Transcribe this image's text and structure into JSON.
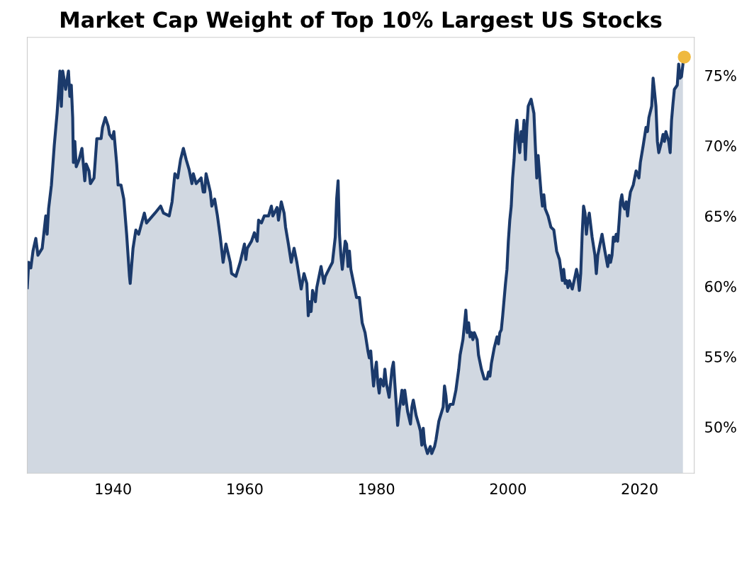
{
  "chart_data": {
    "type": "area",
    "title": "Market Cap Weight of Top 10% Largest US Stocks",
    "xlim": [
      1926.95,
      2028.3
    ],
    "ylim": [
      46.7,
      77.7
    ],
    "xticks": [
      1940,
      1960,
      1980,
      2000,
      2020
    ],
    "yticks": [
      {
        "value": 50,
        "label": "50%"
      },
      {
        "value": 55,
        "label": "55%"
      },
      {
        "value": 60,
        "label": "60%"
      },
      {
        "value": 65,
        "label": "65%"
      },
      {
        "value": 70,
        "label": "70%"
      },
      {
        "value": 75,
        "label": "75%"
      }
    ],
    "grid": false,
    "series": [
      {
        "color": "#1b3a6b",
        "marker": "none",
        "x": [
          1926.95,
          1927.17,
          1927.49,
          1927.82,
          1928.25,
          1928.57,
          1929.22,
          1929.76,
          1929.97,
          1930.19,
          1930.62,
          1931.05,
          1931.48,
          1931.7,
          1931.91,
          1932.13,
          1932.34,
          1932.78,
          1933.21,
          1933.42,
          1933.64,
          1933.85,
          1933.96,
          1934.18,
          1934.39,
          1934.82,
          1935.26,
          1935.69,
          1935.9,
          1936.33,
          1936.55,
          1937.09,
          1937.52,
          1938.17,
          1938.38,
          1938.81,
          1939.24,
          1939.46,
          1939.89,
          1940.11,
          1940.54,
          1940.75,
          1941.19,
          1941.62,
          1942.05,
          1942.48,
          1942.59,
          1943.02,
          1943.45,
          1943.88,
          1944.74,
          1945.07,
          1946.36,
          1947.22,
          1947.65,
          1948.52,
          1948.95,
          1949.38,
          1949.81,
          1950.24,
          1950.67,
          1951.1,
          1951.54,
          1951.97,
          1952.18,
          1952.61,
          1953.37,
          1953.69,
          1953.91,
          1954.12,
          1954.77,
          1954.99,
          1955.42,
          1955.85,
          1956.28,
          1956.71,
          1957.14,
          1957.79,
          1958.0,
          1958.65,
          1959.3,
          1959.95,
          1960.16,
          1960.38,
          1961.02,
          1961.46,
          1961.89,
          1962.1,
          1962.53,
          1962.96,
          1963.61,
          1964.04,
          1964.26,
          1964.91,
          1965.12,
          1965.55,
          1965.98,
          1966.2,
          1966.63,
          1967.06,
          1967.49,
          1967.92,
          1968.36,
          1968.57,
          1969.0,
          1969.43,
          1969.65,
          1969.87,
          1970.08,
          1970.3,
          1970.73,
          1970.94,
          1971.37,
          1971.59,
          1972.02,
          1972.24,
          1972.88,
          1973.32,
          1973.75,
          1973.96,
          1974.18,
          1974.39,
          1974.61,
          1974.82,
          1975.04,
          1975.26,
          1975.47,
          1975.69,
          1975.9,
          1976.12,
          1976.55,
          1976.98,
          1977.41,
          1977.84,
          1978.28,
          1978.71,
          1978.92,
          1979.14,
          1979.35,
          1979.57,
          1979.78,
          1980.0,
          1980.22,
          1980.43,
          1980.65,
          1981.08,
          1981.29,
          1981.51,
          1981.94,
          1982.37,
          1982.59,
          1982.8,
          1983.02,
          1983.23,
          1983.45,
          1983.88,
          1984.1,
          1984.31,
          1984.74,
          1985.18,
          1985.39,
          1985.61,
          1986.04,
          1986.47,
          1986.69,
          1986.9,
          1987.12,
          1987.33,
          1987.76,
          1988.19,
          1988.41,
          1988.84,
          1989.06,
          1989.49,
          1990.14,
          1990.35,
          1990.57,
          1990.78,
          1991.21,
          1991.64,
          1992.08,
          1992.51,
          1992.72,
          1993.15,
          1993.37,
          1993.59,
          1993.8,
          1994.02,
          1994.23,
          1994.45,
          1994.66,
          1994.88,
          1995.31,
          1995.52,
          1995.96,
          1996.39,
          1996.82,
          1997.04,
          1997.25,
          1997.47,
          1997.9,
          1998.33,
          1998.54,
          1998.76,
          1998.98,
          1999.19,
          1999.62,
          1999.84,
          2000.05,
          2000.27,
          2000.49,
          2000.7,
          2000.92,
          2001.13,
          2001.35,
          2001.56,
          2001.78,
          2002.0,
          2002.21,
          2002.43,
          2002.64,
          2002.86,
          2003.07,
          2003.51,
          2003.94,
          2004.15,
          2004.37,
          2004.58,
          2005.01,
          2005.23,
          2005.45,
          2005.66,
          2006.09,
          2006.52,
          2006.96,
          2007.39,
          2007.82,
          2008.25,
          2008.46,
          2008.68,
          2008.9,
          2009.11,
          2009.33,
          2009.76,
          2010.19,
          2010.41,
          2010.62,
          2010.84,
          2011.05,
          2011.27,
          2011.48,
          2011.7,
          2011.91,
          2012.13,
          2012.35,
          2012.78,
          2013.21,
          2013.42,
          2013.64,
          2014.07,
          2014.29,
          2014.72,
          2015.15,
          2015.37,
          2015.58,
          2015.8,
          2016.01,
          2016.23,
          2016.44,
          2016.66,
          2016.87,
          2017.09,
          2017.3,
          2017.52,
          2017.74,
          2017.95,
          2018.17,
          2018.38,
          2018.6,
          2019.03,
          2019.46,
          2019.89,
          2020.11,
          2020.54,
          2020.97,
          2021.19,
          2021.41,
          2021.83,
          2022.05,
          2022.27,
          2022.48,
          2022.7,
          2022.91,
          2023.34,
          2023.56,
          2023.77,
          2023.99,
          2024.42,
          2024.64,
          2024.85,
          2025.07,
          2025.28,
          2025.72,
          2025.93,
          2026.15,
          2026.36,
          2026.58
        ],
        "values": [
          59.9,
          61.7,
          61.3,
          62.5,
          63.4,
          62.2,
          62.7,
          65.0,
          63.7,
          65.5,
          67.2,
          70.0,
          72.3,
          73.8,
          75.3,
          72.8,
          75.3,
          74.0,
          75.3,
          73.5,
          74.3,
          72.0,
          68.8,
          70.3,
          68.5,
          69.0,
          69.8,
          67.5,
          68.7,
          68.2,
          67.3,
          67.7,
          70.5,
          70.5,
          71.3,
          72.0,
          71.4,
          70.8,
          70.5,
          71.0,
          68.7,
          67.2,
          67.2,
          66.2,
          63.7,
          60.7,
          60.2,
          62.7,
          64.0,
          63.7,
          65.2,
          64.5,
          65.2,
          65.7,
          65.2,
          65.0,
          66.0,
          68.0,
          67.7,
          69.0,
          69.8,
          69.0,
          68.3,
          67.3,
          68.0,
          67.3,
          67.7,
          66.7,
          66.7,
          68.0,
          66.7,
          65.7,
          66.2,
          65.0,
          63.5,
          61.7,
          63.0,
          61.7,
          60.9,
          60.7,
          61.7,
          63.0,
          61.9,
          62.7,
          63.2,
          63.8,
          63.2,
          64.7,
          64.5,
          65.0,
          65.0,
          65.7,
          65.0,
          65.6,
          64.7,
          66.0,
          65.2,
          64.2,
          63.0,
          61.7,
          62.7,
          61.7,
          60.4,
          59.8,
          60.9,
          60.2,
          57.9,
          58.9,
          58.2,
          59.7,
          58.9,
          59.9,
          60.9,
          61.4,
          60.2,
          60.7,
          61.3,
          61.7,
          63.5,
          66.2,
          67.5,
          63.7,
          62.2,
          61.2,
          62.2,
          63.2,
          63.0,
          61.4,
          62.5,
          61.2,
          60.2,
          59.2,
          59.2,
          57.4,
          56.7,
          55.4,
          54.9,
          55.4,
          54.1,
          52.9,
          53.9,
          54.6,
          53.1,
          52.4,
          53.4,
          52.9,
          54.1,
          53.1,
          52.1,
          54.1,
          54.6,
          53.1,
          51.6,
          50.1,
          51.1,
          52.6,
          51.6,
          52.6,
          51.1,
          50.2,
          51.4,
          51.9,
          50.8,
          50.1,
          49.7,
          48.7,
          49.9,
          48.8,
          48.1,
          48.6,
          48.1,
          48.6,
          49.1,
          50.4,
          51.4,
          52.9,
          52.2,
          51.1,
          51.6,
          51.6,
          52.6,
          54.1,
          55.1,
          56.2,
          57.2,
          58.3,
          56.7,
          57.4,
          56.4,
          56.7,
          56.2,
          56.7,
          56.2,
          55.1,
          54.1,
          53.4,
          53.4,
          53.9,
          53.6,
          54.5,
          55.6,
          56.4,
          55.9,
          56.7,
          56.9,
          57.9,
          60.2,
          61.2,
          63.2,
          64.7,
          65.7,
          67.7,
          69.0,
          70.8,
          71.8,
          70.3,
          69.5,
          71.0,
          70.3,
          71.8,
          69.0,
          71.3,
          72.8,
          73.3,
          72.3,
          70.0,
          67.7,
          69.3,
          66.7,
          65.7,
          66.5,
          65.5,
          65.0,
          64.2,
          64.0,
          62.5,
          61.9,
          60.4,
          61.2,
          60.2,
          60.4,
          59.9,
          60.4,
          59.8,
          60.7,
          61.2,
          60.7,
          59.7,
          60.9,
          63.7,
          65.7,
          65.2,
          63.7,
          64.7,
          65.2,
          63.5,
          62.2,
          60.9,
          62.2,
          63.2,
          63.7,
          62.5,
          61.4,
          62.2,
          61.7,
          62.2,
          63.5,
          63.2,
          63.7,
          63.2,
          64.5,
          66.0,
          66.5,
          65.7,
          65.5,
          66.0,
          65.0,
          66.0,
          66.7,
          67.2,
          68.2,
          67.7,
          68.8,
          70.0,
          71.3,
          71.0,
          72.0,
          72.8,
          74.8,
          73.8,
          72.8,
          70.3,
          69.5,
          70.3,
          70.8,
          70.3,
          71.0,
          70.3,
          69.5,
          71.8,
          73.0,
          74.0,
          74.3,
          75.8,
          74.8,
          74.9,
          75.8
        ]
      },
      {
        "type": "scatter",
        "color": "#efb93f",
        "marker": "circle",
        "x": [
          2026.79
        ],
        "values": [
          76.3
        ]
      }
    ]
  }
}
